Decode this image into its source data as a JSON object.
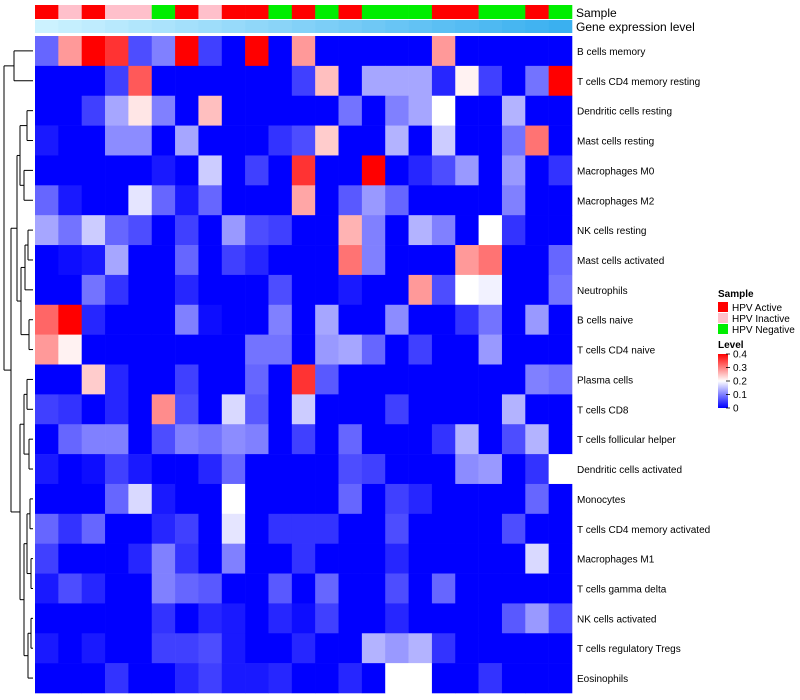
{
  "chart_data": {
    "type": "heatmap",
    "title": "",
    "annotation_rows": [
      "Sample",
      "Gene expression level"
    ],
    "sample_groups": [
      "HPV Active",
      "HPV Inactive",
      "HPV Active",
      "HPV Inactive",
      "HPV Inactive",
      "HPV Negative",
      "HPV Active",
      "HPV Inactive",
      "HPV Active",
      "HPV Active",
      "HPV Negative",
      "HPV Active",
      "HPV Negative",
      "HPV Active",
      "HPV Negative",
      "HPV Negative",
      "HPV Negative",
      "HPV Active",
      "HPV Active",
      "HPV Negative",
      "HPV Negative",
      "HPV Active",
      "HPV Negative"
    ],
    "expression_levels": [
      0.05,
      0.06,
      0.07,
      0.08,
      0.09,
      0.1,
      0.11,
      0.12,
      0.13,
      0.14,
      0.15,
      0.16,
      0.17,
      0.18,
      0.19,
      0.2,
      0.21,
      0.22,
      0.23,
      0.24,
      0.25,
      0.26,
      0.27
    ],
    "rows": [
      "B cells memory",
      "T cells CD4 memory resting",
      "Dendritic cells resting",
      "Mast cells resting",
      "Macrophages M0",
      "Macrophages M2",
      "NK cells resting",
      "Mast cells activated",
      "Neutrophils",
      "B cells naive",
      "T cells CD4 naive",
      "Plasma cells",
      "T cells CD8",
      "T cells follicular helper",
      "Dendritic cells activated",
      "Monocytes",
      "T cells CD4 memory activated",
      "Macrophages M1",
      "T cells gamma delta",
      "NK cells activated",
      "T cells regulatory  Tregs",
      "Eosinophils"
    ],
    "values": [
      [
        0.08,
        0.28,
        0.4,
        0.36,
        0.06,
        0.1,
        0.4,
        0.05,
        0.0,
        0.4,
        0.0,
        0.28,
        0.0,
        0.0,
        0.0,
        0.0,
        0.0,
        0.28,
        0.0,
        0.0,
        0.0,
        0.0,
        0.0
      ],
      [
        0.0,
        0.0,
        0.0,
        0.05,
        0.33,
        0.0,
        0.0,
        0.0,
        0.0,
        0.0,
        0.0,
        0.05,
        0.25,
        0.0,
        0.13,
        0.13,
        0.13,
        0.03,
        0.21,
        0.05,
        0.0,
        0.09,
        0.4
      ],
      [
        0.0,
        0.0,
        0.05,
        0.13,
        0.22,
        0.1,
        0.0,
        0.25,
        0.0,
        0.0,
        0.0,
        0.0,
        0.0,
        0.09,
        0.0,
        0.1,
        0.13,
        0.2,
        0.0,
        0.0,
        0.14,
        0.0,
        0.0
      ],
      [
        0.02,
        0.0,
        0.0,
        0.11,
        0.11,
        0.0,
        0.13,
        0.0,
        0.0,
        0.0,
        0.04,
        0.06,
        0.24,
        0.0,
        0.0,
        0.14,
        0.0,
        0.16,
        0.0,
        0.0,
        0.09,
        0.31,
        0.0
      ],
      [
        0.0,
        0.0,
        0.0,
        0.0,
        0.0,
        0.02,
        0.0,
        0.16,
        0.0,
        0.05,
        0.0,
        0.36,
        0.0,
        0.0,
        0.4,
        0.0,
        0.03,
        0.06,
        0.12,
        0.0,
        0.12,
        0.0,
        0.04
      ],
      [
        0.08,
        0.02,
        0.0,
        0.0,
        0.18,
        0.08,
        0.02,
        0.08,
        0.0,
        0.0,
        0.0,
        0.27,
        0.0,
        0.07,
        0.12,
        0.08,
        0.0,
        0.0,
        0.0,
        0.0,
        0.1,
        0.0,
        0.0
      ],
      [
        0.13,
        0.09,
        0.16,
        0.08,
        0.06,
        0.0,
        0.05,
        0.0,
        0.12,
        0.06,
        0.05,
        0.0,
        0.0,
        0.26,
        0.1,
        0.0,
        0.14,
        0.1,
        0.0,
        0.2,
        0.04,
        0.0,
        0.0
      ],
      [
        0.0,
        0.01,
        0.02,
        0.13,
        0.0,
        0.0,
        0.08,
        0.0,
        0.05,
        0.03,
        0.0,
        0.0,
        0.0,
        0.31,
        0.1,
        0.0,
        0.0,
        0.0,
        0.28,
        0.31,
        0.0,
        0.0,
        0.08
      ],
      [
        0.0,
        0.0,
        0.09,
        0.04,
        0.0,
        0.0,
        0.03,
        0.0,
        0.0,
        0.0,
        0.06,
        0.0,
        0.0,
        0.02,
        0.0,
        0.0,
        0.28,
        0.06,
        0.2,
        0.19,
        0.0,
        0.0,
        0.09
      ],
      [
        0.32,
        0.4,
        0.03,
        0.0,
        0.0,
        0.0,
        0.1,
        0.01,
        0.0,
        0.0,
        0.1,
        0.0,
        0.13,
        0.0,
        0.0,
        0.11,
        0.0,
        0.0,
        0.04,
        0.09,
        0.0,
        0.12,
        0.0
      ],
      [
        0.28,
        0.21,
        0.0,
        0.0,
        0.0,
        0.0,
        0.0,
        0.0,
        0.0,
        0.09,
        0.09,
        0.0,
        0.12,
        0.13,
        0.08,
        0.0,
        0.05,
        0.0,
        0.0,
        0.12,
        0.0,
        0.0,
        0.0
      ],
      [
        0.0,
        0.0,
        0.24,
        0.03,
        0.0,
        0.0,
        0.05,
        0.0,
        0.0,
        0.08,
        0.0,
        0.36,
        0.07,
        0.0,
        0.0,
        0.0,
        0.0,
        0.0,
        0.0,
        0.0,
        0.0,
        0.1,
        0.09
      ],
      [
        0.05,
        0.04,
        0.0,
        0.03,
        0.0,
        0.29,
        0.06,
        0.0,
        0.17,
        0.07,
        0.0,
        0.16,
        0.0,
        0.0,
        0.0,
        0.05,
        0.0,
        0.0,
        0.0,
        0.0,
        0.14,
        0.0,
        0.0
      ],
      [
        0.0,
        0.08,
        0.1,
        0.1,
        0.0,
        0.06,
        0.1,
        0.09,
        0.11,
        0.1,
        0.0,
        0.05,
        0.0,
        0.08,
        0.0,
        0.0,
        0.0,
        0.04,
        0.14,
        0.0,
        0.06,
        0.14,
        0.0
      ],
      [
        0.02,
        0.0,
        0.01,
        0.05,
        0.02,
        0.0,
        0.0,
        0.03,
        0.08,
        0.0,
        0.0,
        0.0,
        0.0,
        0.06,
        0.05,
        0.0,
        0.0,
        0.0,
        0.11,
        0.12,
        0.0,
        0.04,
        0.2
      ],
      [
        0.0,
        0.0,
        0.0,
        0.08,
        0.17,
        0.02,
        0.0,
        0.0,
        0.2,
        0.0,
        0.0,
        0.0,
        0.0,
        0.08,
        0.0,
        0.05,
        0.03,
        0.0,
        0.0,
        0.0,
        0.0,
        0.08,
        0.0
      ],
      [
        0.08,
        0.04,
        0.08,
        0.0,
        0.0,
        0.03,
        0.05,
        0.0,
        0.18,
        0.0,
        0.04,
        0.04,
        0.04,
        0.0,
        0.0,
        0.06,
        0.0,
        0.0,
        0.0,
        0.0,
        0.06,
        0.0,
        0.0
      ],
      [
        0.05,
        0.0,
        0.0,
        0.0,
        0.03,
        0.1,
        0.04,
        0.0,
        0.1,
        0.0,
        0.0,
        0.04,
        0.0,
        0.0,
        0.0,
        0.03,
        0.0,
        0.0,
        0.0,
        0.0,
        0.0,
        0.17,
        0.0
      ],
      [
        0.02,
        0.06,
        0.03,
        0.0,
        0.0,
        0.1,
        0.08,
        0.07,
        0.0,
        0.0,
        0.07,
        0.0,
        0.08,
        0.0,
        0.0,
        0.06,
        0.0,
        0.08,
        0.0,
        0.0,
        0.0,
        0.0,
        0.0
      ],
      [
        0.0,
        0.0,
        0.0,
        0.0,
        0.0,
        0.04,
        0.0,
        0.03,
        0.02,
        0.0,
        0.03,
        0.01,
        0.05,
        0.0,
        0.0,
        0.03,
        0.0,
        0.0,
        0.0,
        0.0,
        0.07,
        0.12,
        0.06
      ],
      [
        0.02,
        0.0,
        0.02,
        0.0,
        0.0,
        0.05,
        0.05,
        0.06,
        0.02,
        0.0,
        0.0,
        0.03,
        0.0,
        0.0,
        0.14,
        0.12,
        0.14,
        0.04,
        0.0,
        0.0,
        0.0,
        0.0,
        0.0
      ],
      [
        0.0,
        0.0,
        0.0,
        0.04,
        0.0,
        0.0,
        0.03,
        0.05,
        0.02,
        0.02,
        0.03,
        0.0,
        0.0,
        0.03,
        0.0,
        0.2,
        0.2,
        0.0,
        0.0,
        0.04,
        0.0,
        0.0,
        0.0
      ]
    ],
    "legend": {
      "sample_title": "Sample",
      "sample_items": [
        {
          "label": "HPV Active",
          "color": "#ff0000"
        },
        {
          "label": "HPV Inactive",
          "color": "#ffc0cb"
        },
        {
          "label": "HPV Negative",
          "color": "#00ee00"
        }
      ],
      "level_title": "Level",
      "level_ticks": [
        "0.4",
        "0.3",
        "0.2",
        "0.1",
        "0"
      ],
      "level_range": [
        0,
        0.4
      ],
      "placement": "right"
    },
    "color_scale": {
      "low": "#0000ff",
      "mid": "#ffffff",
      "high": "#ff0000",
      "mid_value": 0.2
    },
    "expression_scale": {
      "low": "#ccf2ff",
      "high": "#3ab0f0"
    }
  }
}
